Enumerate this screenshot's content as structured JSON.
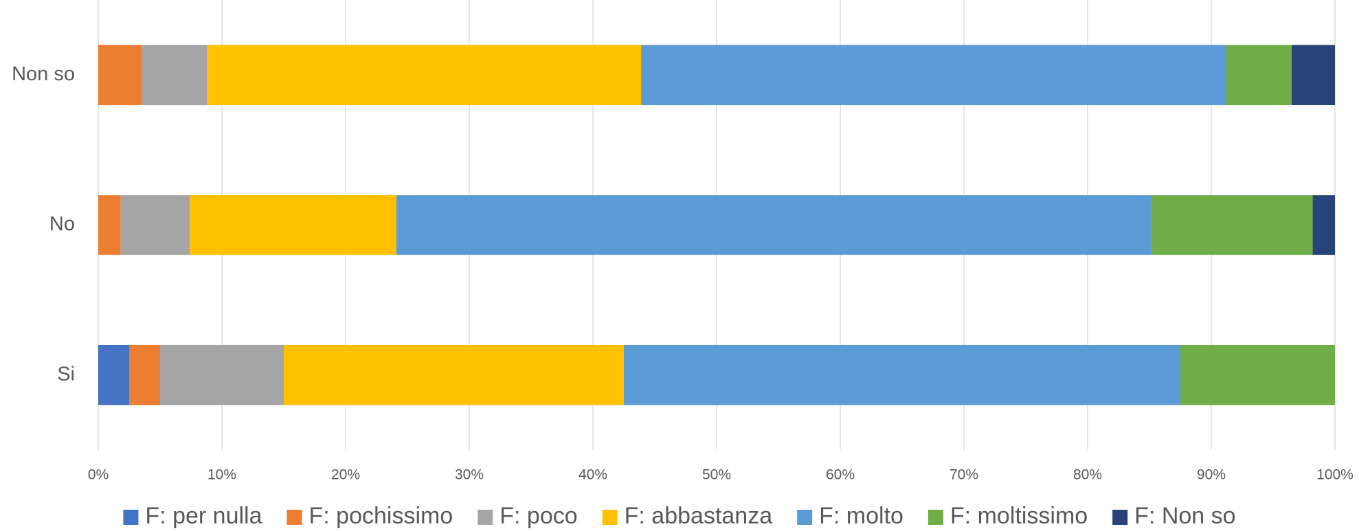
{
  "chart_data": {
    "type": "stacked-bar-horizontal",
    "categories": [
      "Si",
      "No",
      "Non so"
    ],
    "series": [
      {
        "name": "F: per nulla",
        "color": "#4472c4",
        "values": [
          2.5,
          0,
          0
        ]
      },
      {
        "name": "F: pochissimo",
        "color": "#ed7d31",
        "values": [
          2.5,
          1.8,
          3.5
        ]
      },
      {
        "name": "F: poco",
        "color": "#a5a5a5",
        "values": [
          10,
          5.6,
          5.3
        ]
      },
      {
        "name": "F: abbastanza",
        "color": "#ffc000",
        "values": [
          27.5,
          16.7,
          35.1
        ]
      },
      {
        "name": "F: molto",
        "color": "#5b9bd5",
        "values": [
          45,
          61.1,
          47.3
        ]
      },
      {
        "name": "F: moltissimo",
        "color": "#70ad47",
        "values": [
          12.5,
          13.0,
          5.3
        ]
      },
      {
        "name": "F: Non so",
        "color": "#264478",
        "values": [
          0,
          1.8,
          3.5
        ]
      }
    ],
    "xlim": [
      0,
      100
    ],
    "xticks": [
      {
        "value": 0,
        "label": "0%"
      },
      {
        "value": 10,
        "label": "10%"
      },
      {
        "value": 20,
        "label": "20%"
      },
      {
        "value": 30,
        "label": "30%"
      },
      {
        "value": 40,
        "label": "40%"
      },
      {
        "value": 50,
        "label": "50%"
      },
      {
        "value": 60,
        "label": "60%"
      },
      {
        "value": 70,
        "label": "70%"
      },
      {
        "value": 80,
        "label": "80%"
      },
      {
        "value": 90,
        "label": "90%"
      },
      {
        "value": 100,
        "label": "100%"
      }
    ],
    "grid": true,
    "legend": "bottom"
  }
}
